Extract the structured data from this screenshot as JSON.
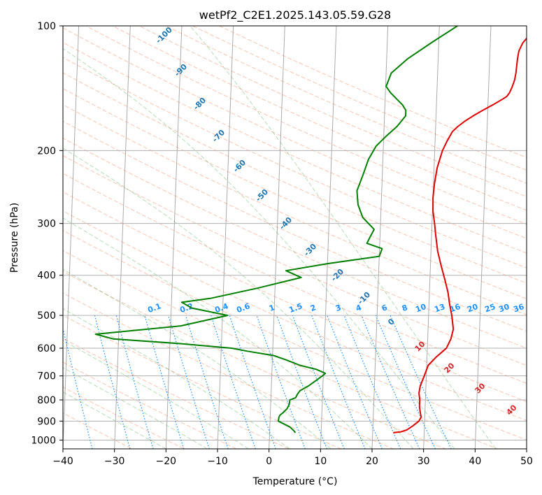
{
  "chart_data": {
    "type": "line",
    "title": "wetPf2_C2E1.2025.143.05.59.G28",
    "xlabel": "Temperature (°C)",
    "ylabel": "Pressure (hPa)",
    "xlim": [
      -40,
      50
    ],
    "ylim": [
      1050,
      100
    ],
    "y_scale": "log",
    "grid": true,
    "x_ticks": [
      -40,
      -30,
      -20,
      -10,
      0,
      10,
      20,
      30,
      40,
      50
    ],
    "y_ticks": [
      100,
      200,
      300,
      400,
      500,
      600,
      700,
      800,
      900,
      1000
    ],
    "colors": {
      "temperature": "#e00000",
      "dewpoint": "#008000",
      "isotherm": "#888888",
      "dry_adiabat": "#ff7f50",
      "moist_adiabat": "#2ca02c",
      "mixing_ratio": "#1e90ff",
      "dry_adiabat_label": "#1f77b4",
      "moist_label": "#d62728"
    },
    "series": [
      {
        "key": "temperature",
        "pressure": [
          960,
          955,
          945,
          925,
          900,
          880,
          860,
          830,
          800,
          770,
          740,
          700,
          660,
          630,
          600,
          570,
          540,
          500,
          470,
          440,
          410,
          380,
          350,
          320,
          300,
          280,
          260,
          240,
          220,
          200,
          190,
          180,
          175,
          170,
          165,
          160,
          155,
          150,
          148,
          145,
          140,
          135,
          130,
          125,
          120,
          115,
          110,
          105,
          100
        ],
        "values": [
          24.0,
          25.5,
          26.6,
          27.7,
          28.9,
          29.3,
          29.1,
          28.9,
          28.9,
          28.7,
          28.9,
          29.6,
          30.3,
          31.8,
          33.7,
          34.5,
          34.9,
          34.5,
          34.0,
          33.6,
          32.9,
          32.1,
          31.3,
          30.8,
          30.5,
          30.1,
          30.0,
          30.2,
          30.6,
          31.5,
          32.3,
          33.3,
          34.3,
          35.6,
          37.2,
          39.0,
          41.0,
          42.9,
          43.6,
          44.1,
          44.6,
          45.0,
          45.2,
          45.3,
          45.4,
          45.6,
          46.3,
          47.6,
          49.0
        ]
      },
      {
        "key": "dewpoint",
        "pressure": [
          960,
          950,
          930,
          900,
          880,
          870,
          860,
          840,
          820,
          800,
          790,
          775,
          760,
          740,
          720,
          700,
          690,
          675,
          660,
          640,
          625,
          610,
          600,
          585,
          570,
          555,
          530,
          500,
          480,
          465,
          455,
          430,
          405,
          390,
          375,
          360,
          345,
          335,
          325,
          310,
          290,
          270,
          250,
          230,
          210,
          195,
          185,
          175,
          165,
          160,
          155,
          150,
          145,
          140,
          130,
          120,
          110,
          100
        ],
        "values": [
          5.0,
          4.7,
          3.9,
          1.6,
          1.7,
          1.9,
          2.4,
          3.2,
          3.6,
          3.7,
          4.8,
          5.1,
          5.6,
          7.2,
          8.5,
          9.8,
          10.4,
          8.6,
          5.4,
          2.6,
          0.2,
          -4.9,
          -8.0,
          -18.0,
          -31.0,
          -34.5,
          -18.0,
          -9.0,
          -16.0,
          -18.0,
          -12.5,
          -3.5,
          5.0,
          2.0,
          10.0,
          20.0,
          20.5,
          17.5,
          18.0,
          18.8,
          16.5,
          15.5,
          15.2,
          16.2,
          17.2,
          18.6,
          20.4,
          22.5,
          24.1,
          24.1,
          23.4,
          22.2,
          21.0,
          20.1,
          21.0,
          24.1,
          28.5,
          33.5
        ]
      }
    ],
    "dry_adiabat_labels": [
      "-100",
      "-90",
      "-80",
      "-70",
      "-60",
      "-50",
      "-40",
      "-30",
      "-20",
      "-10",
      "0"
    ],
    "mixing_ratio_labels": [
      "0.1",
      "0.2",
      "0.4",
      "0.6",
      "1",
      "1.5",
      "2",
      "3",
      "4",
      "6",
      "8",
      "10",
      "13",
      "16",
      "20",
      "25",
      "30",
      "36"
    ],
    "moist_adiabat_labels": [
      "10",
      "20",
      "30",
      "40"
    ]
  }
}
